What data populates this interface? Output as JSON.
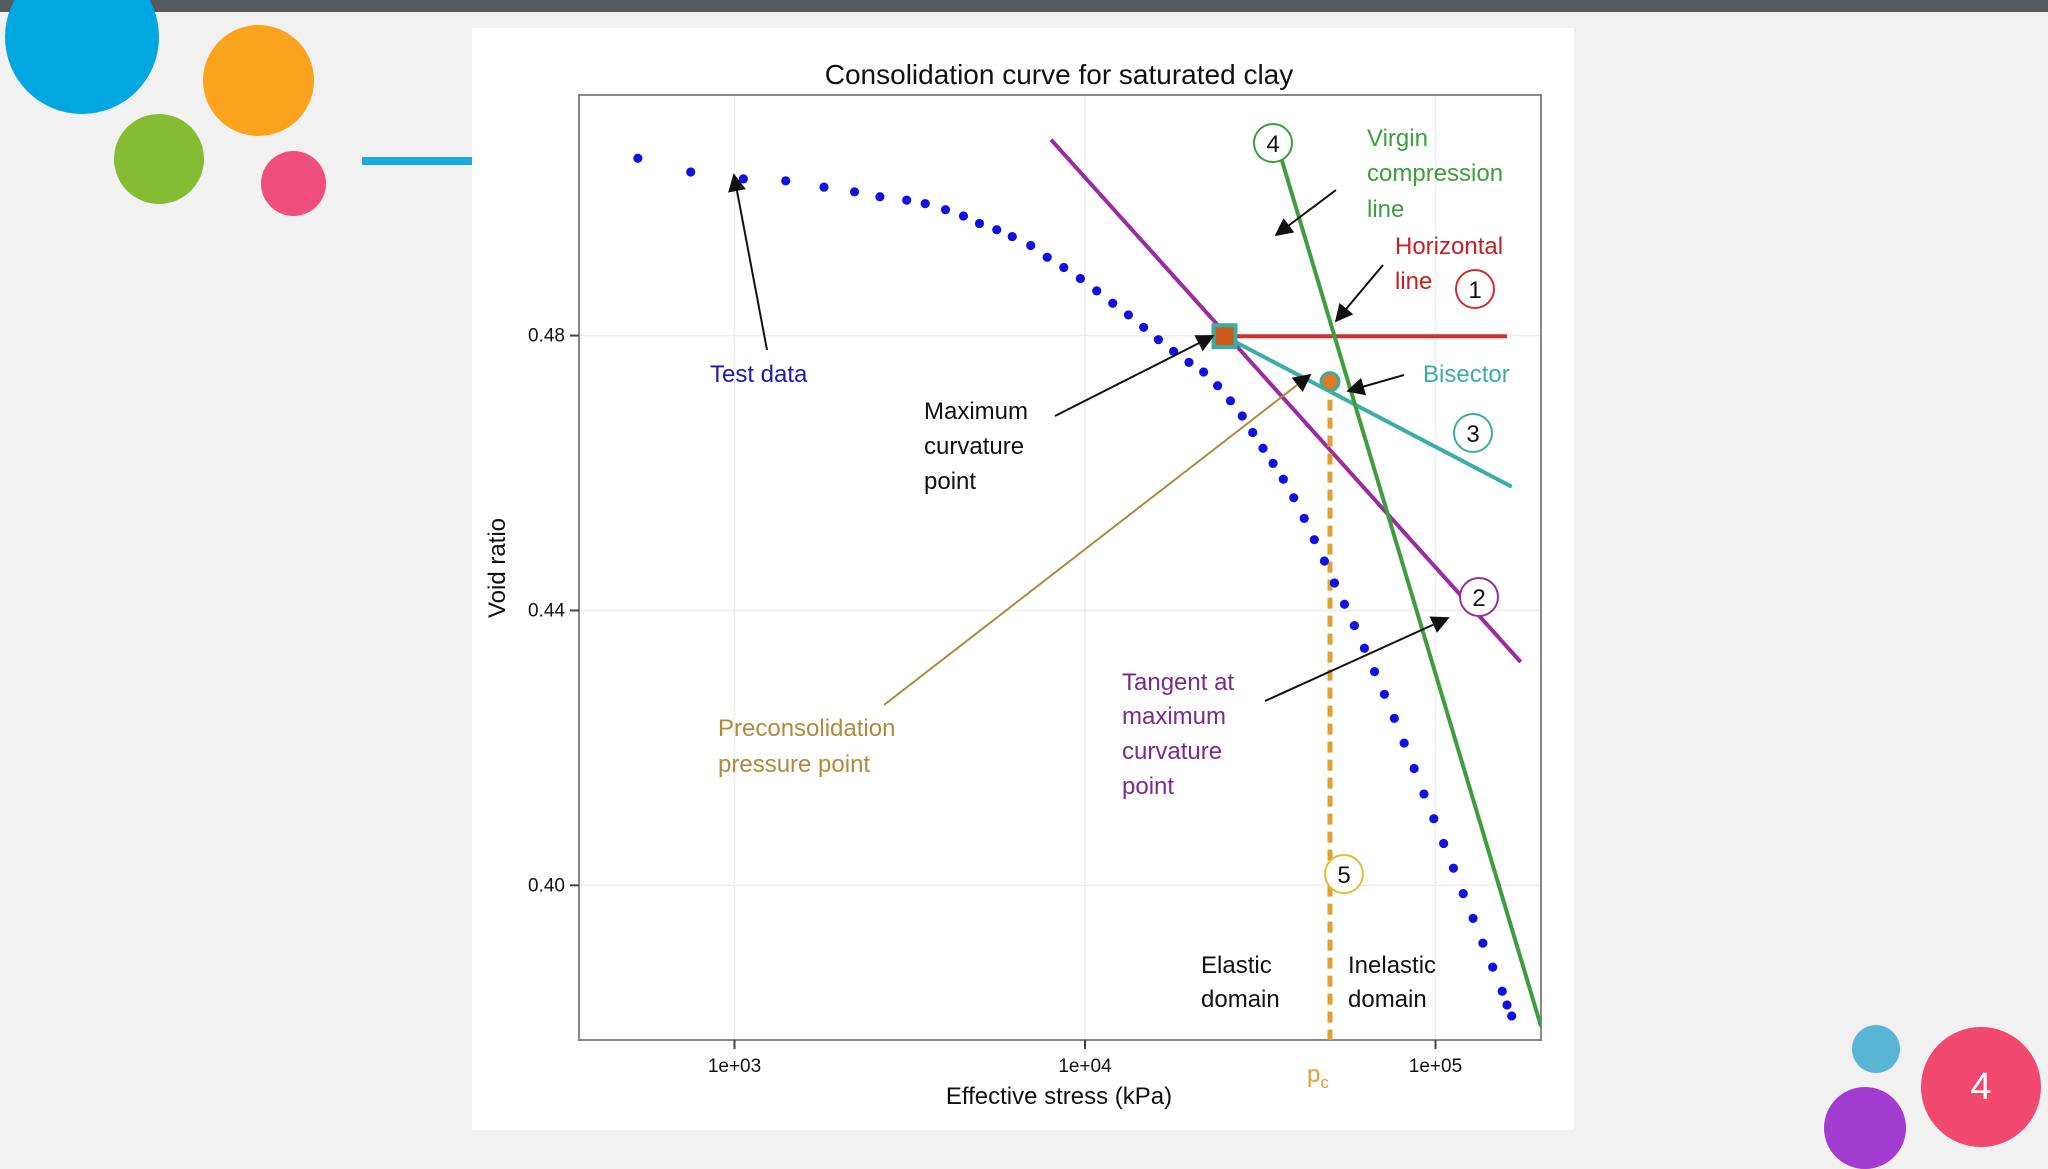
{
  "theme": {
    "topbar": "#555a5e",
    "accent_line": "#1ea8e0",
    "dots": {
      "blue": "#00a6df",
      "orange": "#fba31c",
      "green": "#86bc34",
      "pink": "#f04e7c",
      "teal": "#5ab4d4",
      "purple": "#a23bd0",
      "red_pink": "#f1486f"
    }
  },
  "slide": {
    "page_number": "4"
  },
  "chart_data": {
    "type": "scatter",
    "title": "Consolidation curve for saturated clay",
    "xlabel": "Effective stress (kPa)",
    "ylabel": "Void ratio",
    "x_scale": "log10",
    "xlim": [
      360,
      200000
    ],
    "ylim": [
      0.3775,
      0.515
    ],
    "x_ticks": [
      {
        "value": 1000,
        "label": "1e+03"
      },
      {
        "value": 10000,
        "label": "1e+04"
      },
      {
        "value": 100000,
        "label": "1e+05"
      }
    ],
    "y_ticks": [
      {
        "value": 0.4,
        "label": "0.40"
      },
      {
        "value": 0.44,
        "label": "0.44"
      },
      {
        "value": 0.48,
        "label": "0.48"
      }
    ],
    "grid": true,
    "series": [
      {
        "role": "test_data",
        "color": "#1010e0",
        "x": [
          530,
          750,
          1060,
          1400,
          1800,
          2200,
          2600,
          3100,
          3500,
          4000,
          4500,
          5000,
          5600,
          6200,
          7000,
          7800,
          8700,
          9700,
          10800,
          12000,
          13300,
          14700,
          16200,
          17900,
          19800,
          21800,
          23900,
          26000,
          28100,
          30100,
          32200,
          34400,
          36800,
          39400,
          42200,
          45100,
          48200,
          51500,
          55000,
          58700,
          62700,
          67000,
          71500,
          76300,
          81400,
          86900,
          92700,
          98900,
          105500,
          112500,
          120000,
          128000,
          136500,
          145600,
          155000,
          160000,
          165000
        ],
        "y": [
          0.5058,
          0.5038,
          0.5028,
          0.5025,
          0.5016,
          0.5009,
          0.5002,
          0.4997,
          0.4992,
          0.4983,
          0.4974,
          0.4963,
          0.4954,
          0.4944,
          0.4931,
          0.4914,
          0.4899,
          0.4883,
          0.4865,
          0.4847,
          0.483,
          0.4812,
          0.4794,
          0.4777,
          0.4761,
          0.4747,
          0.4727,
          0.4705,
          0.4683,
          0.4659,
          0.4636,
          0.4614,
          0.4591,
          0.4564,
          0.4534,
          0.4503,
          0.4472,
          0.444,
          0.4409,
          0.4378,
          0.4345,
          0.4311,
          0.4278,
          0.4243,
          0.4207,
          0.417,
          0.4133,
          0.4097,
          0.4061,
          0.4025,
          0.3988,
          0.3952,
          0.3916,
          0.3881,
          0.3846,
          0.3826,
          0.381
        ]
      }
    ],
    "lines": [
      {
        "name": "Horizontal line",
        "id": "1",
        "color": "#d42d2d",
        "x": [
          25000,
          160000
        ],
        "y": [
          0.4799,
          0.4799
        ]
      },
      {
        "name": "Tangent at maximum curvature point",
        "id": "2",
        "color": "#9a2ba0",
        "x": [
          8000,
          175000
        ],
        "y": [
          0.5085,
          0.4325
        ]
      },
      {
        "name": "Bisector",
        "id": "3",
        "color": "#3aada6",
        "x": [
          25000,
          165000
        ],
        "y": [
          0.4799,
          0.458
        ]
      },
      {
        "name": "Virgin compression line",
        "id": "4",
        "color": "#3e9e3e",
        "x": [
          35000,
          200000
        ],
        "y": [
          0.5085,
          0.3795
        ]
      },
      {
        "name": "pc",
        "id": "5",
        "color": "#e0a030",
        "style": "dashed",
        "x": [
          50000,
          50000
        ],
        "y": [
          0.4733,
          0.3775
        ]
      }
    ],
    "points": [
      {
        "name": "Maximum curvature point",
        "x": 25000,
        "y": 0.4799,
        "color": "#cc5a1a",
        "outline": "#3aada6"
      },
      {
        "name": "Preconsolidation pressure point",
        "x": 50000,
        "y": 0.4733,
        "color": "#e07820",
        "outline": "#3aada6"
      }
    ],
    "annotations": {
      "test_data": "Test data",
      "max_curv_1": "Maximum",
      "max_curv_2": "curvature",
      "max_curv_3": "point",
      "virgin_1": "Virgin",
      "virgin_2": "compression",
      "virgin_3": "line",
      "horiz_1": "Horizontal",
      "horiz_2": "line",
      "bisector": "Bisector",
      "tangent_1": "Tangent at",
      "tangent_2": "maximum",
      "tangent_3": "curvature",
      "tangent_4": "point",
      "precons_1": "Preconsolidation",
      "precons_2": "pressure point",
      "elastic_1": "Elastic",
      "elastic_2": "domain",
      "inelastic_1": "Inelastic",
      "inelastic_2": "domain",
      "pc_main": "p",
      "pc_sub": "c",
      "num_1": "1",
      "num_2": "2",
      "num_3": "3",
      "num_4": "4",
      "num_5": "5"
    }
  }
}
